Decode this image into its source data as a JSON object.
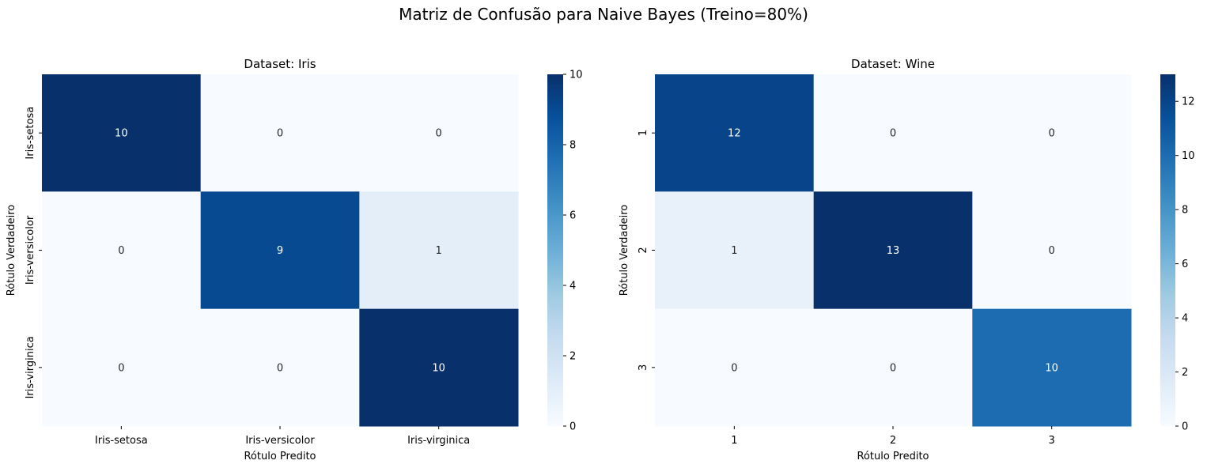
{
  "figure": {
    "title": "Matriz de Confusão para Naive Bayes (Treino=80%)"
  },
  "chart_data": [
    {
      "type": "heatmap",
      "title": "Dataset: Iris",
      "xlabel": "Rótulo Predito",
      "ylabel": "Rótulo Verdadeiro",
      "x_categories": [
        "Iris-setosa",
        "Iris-versicolor",
        "Iris-virginica"
      ],
      "y_categories": [
        "Iris-setosa",
        "Iris-versicolor",
        "Iris-virginica"
      ],
      "values": [
        [
          10,
          0,
          0
        ],
        [
          0,
          9,
          1
        ],
        [
          0,
          0,
          10
        ]
      ],
      "colormap": "Blues",
      "colorbar": {
        "range": [
          0,
          10
        ],
        "ticks": [
          0,
          2,
          4,
          6,
          8,
          10
        ]
      }
    },
    {
      "type": "heatmap",
      "title": "Dataset: Wine",
      "xlabel": "Rótulo Predito",
      "ylabel": "Rótulo Verdadeiro",
      "x_categories": [
        "1",
        "2",
        "3"
      ],
      "y_categories": [
        "1",
        "2",
        "3"
      ],
      "values": [
        [
          12,
          0,
          0
        ],
        [
          1,
          13,
          0
        ],
        [
          0,
          0,
          10
        ]
      ],
      "colormap": "Blues",
      "colorbar": {
        "range": [
          0,
          13
        ],
        "ticks": [
          0,
          2,
          4,
          6,
          8,
          10,
          12
        ]
      }
    }
  ]
}
